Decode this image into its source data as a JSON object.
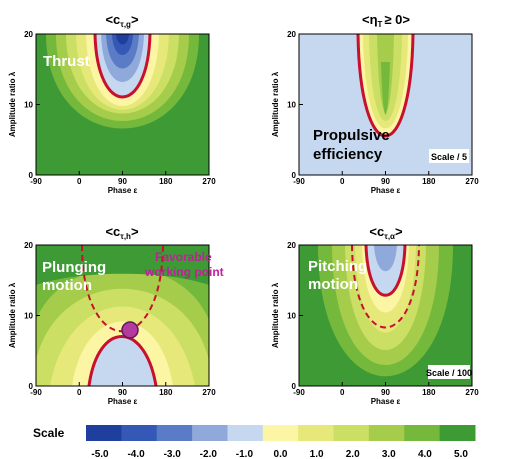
{
  "chart_data": [
    {
      "type": "heatmap",
      "title": "<c_{τ,g}>",
      "title_main": "<c",
      "title_sub": "τ,g",
      "title_close": ">",
      "xlabel": "Phase ε",
      "ylabel": "Amplitude ratio λ",
      "xlim": [
        -90,
        270
      ],
      "ylim": [
        0,
        20
      ],
      "xticks": [
        "-90",
        "0",
        "90",
        "180",
        "270"
      ],
      "yticks": [
        "0",
        "10",
        "20"
      ],
      "annotations": [
        "Thrust"
      ],
      "contour_minimum": {
        "x": 90,
        "y": 7.5
      },
      "highlighted_contour": "0.0",
      "values_at_phase_90": [
        {
          "y": 20,
          "value": -5.0
        },
        {
          "y": 10,
          "value": -1.0
        },
        {
          "y": 7.5,
          "value": 0.0
        },
        {
          "y": 3,
          "value": 1.0
        }
      ]
    },
    {
      "type": "heatmap",
      "title": "<η_T ≥ 0>",
      "title_main": "<η",
      "title_sub": "T",
      "title_close": "≥ 0>",
      "xlabel": "Phase ε",
      "ylabel": "Amplitude ratio λ",
      "xlim": [
        -90,
        270
      ],
      "ylim": [
        0,
        20
      ],
      "xticks": [
        "-90",
        "0",
        "90",
        "180",
        "270"
      ],
      "yticks": [
        "0",
        "10",
        "20"
      ],
      "annotations": [
        "Propulsive",
        "efficiency"
      ],
      "scale_note": "Scale / 5",
      "contour_minimum": {
        "x": 90,
        "y": 7.5
      },
      "highlighted_contour": "0.0"
    },
    {
      "type": "heatmap",
      "title": "<c_{τ,h}>",
      "title_main": "<c",
      "title_sub": "τ,h",
      "title_close": ">",
      "xlabel": "Phase ε",
      "ylabel": "Amplitude ratio λ",
      "xlim": [
        -90,
        270
      ],
      "ylim": [
        0,
        20
      ],
      "xticks": [
        "-90",
        "0",
        "90",
        "180",
        "270"
      ],
      "yticks": [
        "0",
        "10",
        "20"
      ],
      "annotations": [
        "Plunging",
        "motion",
        "Favorable",
        "working point"
      ],
      "highlighted_contour": "0.0",
      "contour_peak": {
        "x": 90,
        "y": 7.5
      },
      "marker": {
        "x": 85,
        "y": 8.2
      },
      "dashed_boundary": [
        {
          "x": 20,
          "y": 20
        },
        {
          "x": 55,
          "y": 12
        },
        {
          "x": 90,
          "y": 7.5
        },
        {
          "x": 125,
          "y": 12
        },
        {
          "x": 160,
          "y": 20
        }
      ]
    },
    {
      "type": "heatmap",
      "title": "<c_{τ,α}>",
      "title_main": "<c",
      "title_sub": "τ,α",
      "title_close": ">",
      "xlabel": "Phase ε",
      "ylabel": "Amplitude ratio λ",
      "xlim": [
        -90,
        270
      ],
      "ylim": [
        0,
        20
      ],
      "xticks": [
        "-90",
        "0",
        "90",
        "180",
        "270"
      ],
      "yticks": [
        "0",
        "10",
        "20"
      ],
      "annotations": [
        "Pitching",
        "motion"
      ],
      "scale_note": "Scale / 100",
      "contour_minimum": {
        "x": 90,
        "y": 13.5
      },
      "dashed_minimum": {
        "x": 90,
        "y": 9.5
      },
      "highlighted_contour": "0.0"
    }
  ],
  "colorbar": {
    "label": "Scale",
    "ticks": [
      "-5.0",
      "-4.0",
      "-3.0",
      "-2.0",
      "-1.0",
      "0.0",
      "1.0",
      "2.0",
      "3.0",
      "4.0",
      "5.0"
    ],
    "colors": [
      "#1f3f9e",
      "#3557b5",
      "#5a7cc7",
      "#8fa9da",
      "#c6d8ef",
      "#fbf5a4",
      "#e6e87a",
      "#cadf63",
      "#a6cc4c",
      "#75b93c",
      "#3d9a35"
    ]
  },
  "colors": {
    "zero_contour": "#c8102e",
    "annotation_text": "#ffffff",
    "favorable_text": "#c0209a",
    "marker_fill": "#b43aa0"
  }
}
